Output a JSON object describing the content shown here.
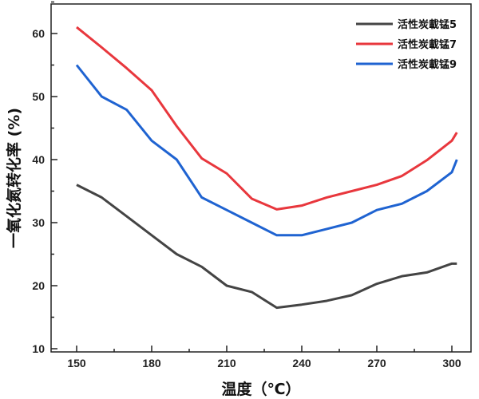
{
  "chart_data": {
    "type": "line",
    "title": "",
    "xlabel": "温度（℃）",
    "ylabel": "一氧化氮转化率 (%)",
    "xlim": [
      140,
      305
    ],
    "ylim": [
      10,
      65
    ],
    "xticks": [
      150,
      180,
      210,
      240,
      270,
      300
    ],
    "yticks": [
      10,
      20,
      30,
      40,
      50,
      60
    ],
    "grid": false,
    "legend_position": "top-right",
    "x": [
      150,
      160,
      170,
      180,
      190,
      200,
      210,
      220,
      230,
      240,
      250,
      260,
      270,
      280,
      290,
      300,
      302
    ],
    "series": [
      {
        "name": "活性炭載锰5",
        "color": "#444444",
        "values": [
          36,
          34,
          31,
          28,
          25,
          23,
          20,
          19,
          16.5,
          17,
          17.6,
          18.5,
          20.3,
          21.5,
          22.1,
          23.5,
          23.5
        ]
      },
      {
        "name": "活性炭載锰7",
        "color": "#e8373d",
        "values": [
          61,
          57.8,
          54.5,
          51,
          45.3,
          40.2,
          37.8,
          33.8,
          32.1,
          32.7,
          34,
          35,
          36,
          37.4,
          39.9,
          43,
          44.3
        ]
      },
      {
        "name": "活性炭載锰9",
        "color": "#1f63d1",
        "values": [
          55,
          50,
          47.9,
          43,
          40,
          34,
          32,
          30,
          28,
          28,
          29,
          30,
          32,
          33,
          35,
          38,
          40
        ]
      }
    ]
  }
}
